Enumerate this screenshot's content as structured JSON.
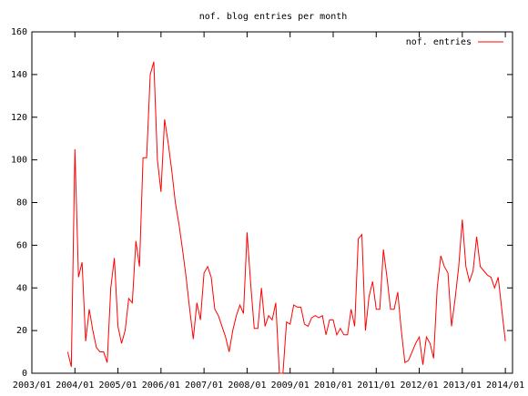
{
  "chart_data": {
    "type": "line",
    "title": "nof. blog entries per month",
    "x": [
      "2003/11",
      "2003/12",
      "2004/01",
      "2004/02",
      "2004/03",
      "2004/04",
      "2004/05",
      "2004/06",
      "2004/07",
      "2004/08",
      "2004/09",
      "2004/10",
      "2004/11",
      "2004/12",
      "2005/01",
      "2005/02",
      "2005/03",
      "2005/04",
      "2005/05",
      "2005/06",
      "2005/07",
      "2005/08",
      "2005/09",
      "2005/10",
      "2005/11",
      "2005/12",
      "2006/01",
      "2006/02",
      "2006/03",
      "2006/04",
      "2006/05",
      "2006/06",
      "2006/07",
      "2006/08",
      "2006/09",
      "2006/10",
      "2006/11",
      "2006/12",
      "2007/01",
      "2007/02",
      "2007/03",
      "2007/04",
      "2007/05",
      "2007/06",
      "2007/07",
      "2007/08",
      "2007/09",
      "2007/10",
      "2007/11",
      "2007/12",
      "2008/01",
      "2008/02",
      "2008/03",
      "2008/04",
      "2008/05",
      "2008/06",
      "2008/07",
      "2008/08",
      "2008/09",
      "2008/10",
      "2008/11",
      "2008/12",
      "2009/01",
      "2009/02",
      "2009/03",
      "2009/04",
      "2009/05",
      "2009/06",
      "2009/07",
      "2009/08",
      "2009/09",
      "2009/10",
      "2009/11",
      "2009/12",
      "2010/01",
      "2010/02",
      "2010/03",
      "2010/04",
      "2010/05",
      "2010/06",
      "2010/07",
      "2010/08",
      "2010/09",
      "2010/10",
      "2010/11",
      "2010/12",
      "2011/01",
      "2011/02",
      "2011/03",
      "2011/04",
      "2011/05",
      "2011/06",
      "2011/07",
      "2011/08",
      "2011/09",
      "2011/10",
      "2011/11",
      "2011/12",
      "2012/01",
      "2012/02",
      "2012/03",
      "2012/04",
      "2012/05",
      "2012/06",
      "2012/07",
      "2012/08",
      "2012/09",
      "2012/10",
      "2012/11",
      "2012/12",
      "2013/01",
      "2013/02",
      "2013/03",
      "2013/04",
      "2013/05",
      "2013/06",
      "2013/07",
      "2013/08",
      "2013/09",
      "2013/10",
      "2013/11",
      "2013/12",
      "2014/01"
    ],
    "series": [
      {
        "name": "nof. entries",
        "color": "#ff0000",
        "values": [
          10,
          3,
          105,
          45,
          52,
          15,
          30,
          20,
          12,
          10,
          10,
          5,
          40,
          54,
          22,
          14,
          20,
          35,
          33,
          62,
          50,
          101,
          101,
          140,
          146,
          100,
          85,
          119,
          108,
          95,
          80,
          70,
          58,
          45,
          30,
          16,
          33,
          25,
          47,
          50,
          45,
          30,
          27,
          22,
          17,
          10,
          20,
          27,
          32,
          28,
          66,
          42,
          21,
          21,
          40,
          22,
          27,
          25,
          33,
          0,
          0,
          24,
          23,
          32,
          31,
          31,
          23,
          22,
          26,
          27,
          26,
          27,
          18,
          25,
          25,
          18,
          21,
          18,
          18,
          30,
          22,
          63,
          65,
          20,
          36,
          43,
          30,
          30,
          58,
          45,
          30,
          30,
          38,
          20,
          5,
          6,
          10,
          14,
          17,
          4,
          17,
          14,
          7,
          40,
          55,
          50,
          47,
          22,
          35,
          50,
          72,
          50,
          43,
          48,
          64,
          50,
          48,
          46,
          45,
          40,
          45,
          30,
          15
        ]
      }
    ],
    "xlim": [
      "2003/01",
      "2014/03"
    ],
    "xticks": [
      "2003/01",
      "2004/01",
      "2005/01",
      "2006/01",
      "2007/01",
      "2008/01",
      "2009/01",
      "2010/01",
      "2011/01",
      "2012/01",
      "2013/01",
      "2014/01"
    ],
    "ylim": [
      0,
      160
    ],
    "yticks": [
      0,
      20,
      40,
      60,
      80,
      100,
      120,
      140,
      160
    ],
    "legend": "top-right"
  }
}
